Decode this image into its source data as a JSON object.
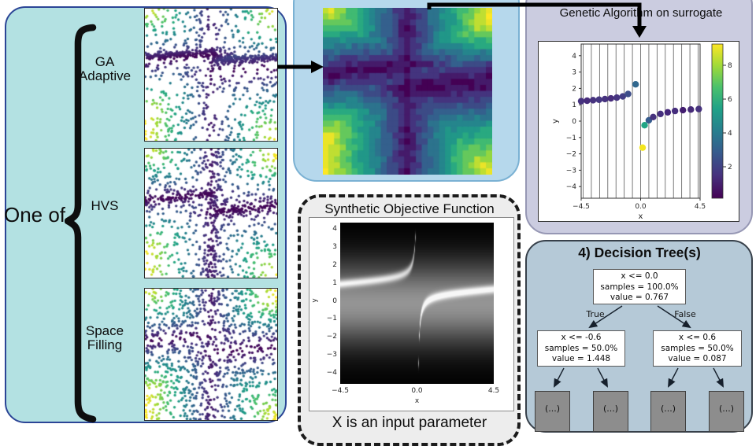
{
  "colors": {
    "sampling_panel": "#b3e1e2",
    "sampling_border": "#2b4596",
    "surrogate_panel": "#b6d8ec",
    "surrogate_border": "#7ab1d3",
    "ga_panel": "#cbcce0",
    "ga_border": "#9697b4",
    "tree_panel": "#b5c9d7",
    "tree_border": "#37404a",
    "objective_panel": "#ededed",
    "objective_border": "#1b1b1b",
    "leaf_gray": "#8d8d8d",
    "arrow_black": "#000000"
  },
  "left_panel": {
    "one_of": "One of",
    "items": [
      {
        "label": "GA Adaptive",
        "mode": "ga"
      },
      {
        "label": "HVS",
        "mode": "hvs"
      },
      {
        "label": "Space Filling",
        "mode": "uniform"
      }
    ]
  },
  "ga_panel": {
    "title": "Genetic Algorithm on surrogate",
    "xlabel": "x",
    "ylabel": "y",
    "xticks": [
      "−4.5",
      "0.0",
      "4.5"
    ],
    "yticks": [
      "4",
      "3",
      "2",
      "1",
      "0",
      "−1",
      "−2",
      "−3",
      "−4"
    ],
    "colorbar_ticks": [
      "8",
      "6",
      "4",
      "2"
    ],
    "gridline_count": 15
  },
  "chart_data": {
    "type": "scatter",
    "title": "Genetic Algorithm on surrogate",
    "xlabel": "x",
    "ylabel": "y",
    "xlim": [
      -4.5,
      4.5
    ],
    "ylim": [
      -4.7,
      4.7
    ],
    "colorbar_range": [
      0,
      9
    ],
    "points": [
      {
        "x": -4.5,
        "y": 1.22,
        "c": "#46327e"
      },
      {
        "x": -4.05,
        "y": 1.25,
        "c": "#472d7b"
      },
      {
        "x": -3.6,
        "y": 1.28,
        "c": "#46327e"
      },
      {
        "x": -3.15,
        "y": 1.31,
        "c": "#453781"
      },
      {
        "x": -2.7,
        "y": 1.35,
        "c": "#46327e"
      },
      {
        "x": -2.25,
        "y": 1.39,
        "c": "#472d7b"
      },
      {
        "x": -1.8,
        "y": 1.44,
        "c": "#463480"
      },
      {
        "x": -1.35,
        "y": 1.51,
        "c": "#433e85"
      },
      {
        "x": -0.95,
        "y": 1.66,
        "c": "#3d4e8a"
      },
      {
        "x": -0.38,
        "y": 2.25,
        "c": "#31688e"
      },
      {
        "x": 0.3,
        "y": -0.25,
        "c": "#21a585"
      },
      {
        "x": 0.15,
        "y": -1.62,
        "c": "#f4e61e"
      },
      {
        "x": 0.62,
        "y": 0.05,
        "c": "#365c8d"
      },
      {
        "x": 0.95,
        "y": 0.25,
        "c": "#46327e"
      },
      {
        "x": 1.5,
        "y": 0.44,
        "c": "#452f7e"
      },
      {
        "x": 2.05,
        "y": 0.54,
        "c": "#44267a"
      },
      {
        "x": 2.6,
        "y": 0.62,
        "c": "#452d7c"
      },
      {
        "x": 3.2,
        "y": 0.67,
        "c": "#431e70"
      },
      {
        "x": 3.8,
        "y": 0.71,
        "c": "#452a78"
      },
      {
        "x": 4.4,
        "y": 0.74,
        "c": "#46327e"
      }
    ]
  },
  "synthetic": {
    "title": "Synthetic Objective Function",
    "caption": "X is an input parameter",
    "xlabel": "x",
    "ylabel": "y",
    "xticks": [
      "−4.5",
      "0.0",
      "4.5"
    ],
    "yticks": [
      "4",
      "3",
      "2",
      "1",
      "0",
      "−1",
      "−2",
      "−3",
      "−4"
    ]
  },
  "tree": {
    "title": "4) Decision Tree(s)",
    "true_label": "True",
    "false_label": "False",
    "root": [
      "x <= 0.0",
      "samples = 100.0%",
      "value = 0.767"
    ],
    "left": [
      "x <= -0.6",
      "samples = 50.0%",
      "value = 1.448"
    ],
    "right": [
      "x <= 0.6",
      "samples = 50.0%",
      "value = 0.087"
    ],
    "leaves": [
      "(...)",
      "(...)",
      "(...)",
      "(...)"
    ]
  }
}
